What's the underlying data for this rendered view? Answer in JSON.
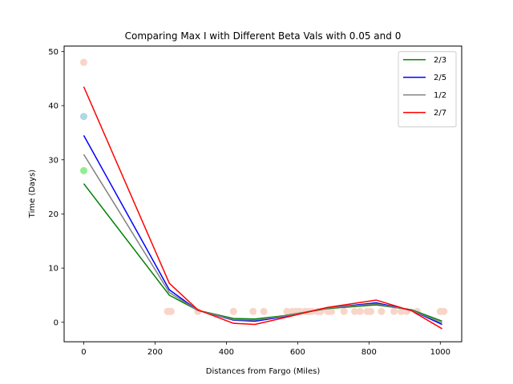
{
  "chart_data": {
    "type": "line",
    "title": "Comparing Max I with Different Beta Vals with 0.05 and 0",
    "xlabel": "Distances from Fargo (Miles)",
    "ylabel": "Time (Days)",
    "xlim": [
      -55,
      1060
    ],
    "ylim": [
      -3.6,
      51
    ],
    "xticks": [
      0,
      200,
      400,
      600,
      800,
      1000
    ],
    "yticks": [
      0,
      10,
      20,
      30,
      40,
      50
    ],
    "grid": false,
    "legend_position": "top-right",
    "x": [
      0,
      240,
      320,
      420,
      480,
      560,
      680,
      820,
      920,
      1005
    ],
    "series": [
      {
        "name": "2/3",
        "color": "#008000",
        "values": [
          25.6,
          5.0,
          2.2,
          0.7,
          0.6,
          1.2,
          2.5,
          3.2,
          2.3,
          0.2
        ]
      },
      {
        "name": "2/5",
        "color": "#0000ff",
        "values": [
          34.5,
          6.0,
          2.2,
          0.4,
          0.2,
          1.0,
          2.6,
          3.6,
          2.2,
          -0.4
        ]
      },
      {
        "name": "1/2",
        "color": "#808080",
        "values": [
          31.0,
          5.5,
          2.2,
          0.5,
          0.4,
          1.1,
          2.6,
          3.4,
          2.2,
          -0.1
        ]
      },
      {
        "name": "2/7",
        "color": "#ff0000",
        "values": [
          43.5,
          7.2,
          2.3,
          -0.2,
          -0.4,
          0.8,
          2.7,
          4.1,
          2.1,
          -1.2
        ]
      }
    ],
    "scatter": [
      {
        "color": "#f8d5c8",
        "points": [
          [
            0,
            48
          ],
          [
            235,
            2
          ],
          [
            240,
            2
          ],
          [
            245,
            2
          ],
          [
            320,
            2
          ],
          [
            420,
            2
          ],
          [
            475,
            2
          ],
          [
            505,
            2
          ],
          [
            570,
            2
          ],
          [
            585,
            2
          ],
          [
            595,
            2
          ],
          [
            605,
            2
          ],
          [
            620,
            2
          ],
          [
            630,
            2
          ],
          [
            640,
            2
          ],
          [
            655,
            2
          ],
          [
            665,
            2
          ],
          [
            685,
            2
          ],
          [
            695,
            2
          ],
          [
            730,
            2
          ],
          [
            760,
            2
          ],
          [
            775,
            2
          ],
          [
            795,
            2
          ],
          [
            805,
            2
          ],
          [
            835,
            2
          ],
          [
            870,
            2
          ],
          [
            890,
            2
          ],
          [
            905,
            2
          ],
          [
            935,
            2
          ],
          [
            1000,
            2
          ],
          [
            1010,
            2
          ]
        ]
      },
      {
        "color": "#add8e6",
        "points": [
          [
            0,
            38
          ]
        ]
      },
      {
        "color": "#90ee90",
        "points": [
          [
            0,
            28
          ]
        ]
      }
    ]
  }
}
